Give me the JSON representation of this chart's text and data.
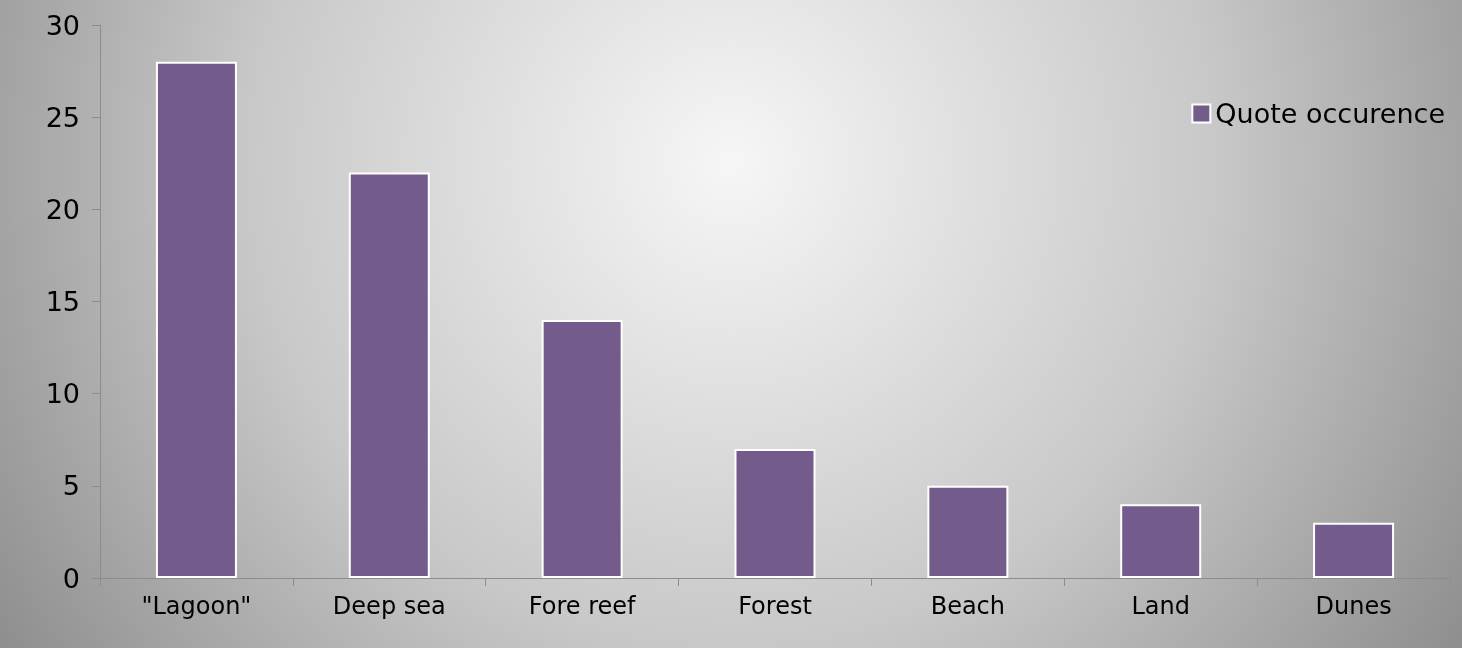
{
  "chart_data": {
    "type": "bar",
    "categories": [
      "\"Lagoon\"",
      "Deep sea",
      "Fore reef",
      "Forest",
      "Beach",
      "Land",
      "Dunes"
    ],
    "series": [
      {
        "name": "Quote occurence",
        "color": "#735b8b",
        "values": [
          28,
          22,
          14,
          7,
          5,
          4,
          3
        ]
      }
    ],
    "ylim": [
      0,
      30
    ],
    "yticks": [
      0,
      5,
      10,
      15,
      20,
      25,
      30
    ],
    "grid": false,
    "legend": "top right"
  }
}
